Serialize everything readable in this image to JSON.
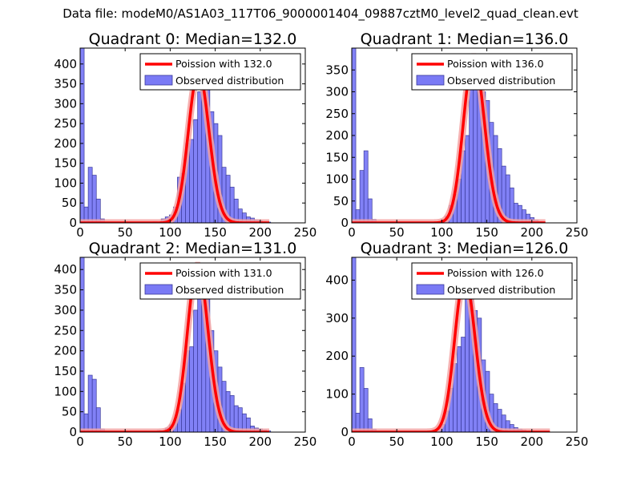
{
  "figure_title": "Data file: modeM0/AS1A03_117T06_9000001404_09887cztM0_level2_quad_clean.evt",
  "colors": {
    "poisson": "#ff0000",
    "poisson_light": "#f5a3a3",
    "bar_fill": "#7a7af5",
    "bar_edge": "#3a3a9a"
  },
  "chart_data": [
    {
      "type": "bar",
      "title": "Quadrant 0: Median=132.0",
      "legend": {
        "placement": "top-right",
        "line_label": "Poission with 132.0",
        "bar_label": "Observed distribution"
      },
      "xlim": [
        0,
        250
      ],
      "ylim": [
        0,
        440
      ],
      "xticks": [
        0,
        50,
        100,
        150,
        200,
        250
      ],
      "yticks": [
        0,
        50,
        100,
        150,
        200,
        250,
        300,
        350,
        400
      ],
      "bin_width": 4.5,
      "bins": [
        [
          0,
          440
        ],
        [
          4.5,
          40
        ],
        [
          9,
          140
        ],
        [
          13.5,
          120
        ],
        [
          18,
          60
        ],
        [
          22.5,
          10
        ],
        [
          81,
          3
        ],
        [
          90,
          10
        ],
        [
          94.5,
          15
        ],
        [
          99,
          20
        ],
        [
          103.5,
          40
        ],
        [
          108,
          115
        ],
        [
          112.5,
          125
        ],
        [
          117,
          200
        ],
        [
          121.5,
          210
        ],
        [
          126,
          260
        ],
        [
          130.5,
          330
        ],
        [
          135,
          380
        ],
        [
          139.5,
          360
        ],
        [
          144,
          280
        ],
        [
          148.5,
          250
        ],
        [
          153,
          220
        ],
        [
          157.5,
          140
        ],
        [
          162,
          120
        ],
        [
          166.5,
          90
        ],
        [
          171,
          60
        ],
        [
          175.5,
          35
        ],
        [
          180,
          25
        ],
        [
          184.5,
          15
        ],
        [
          189,
          12
        ],
        [
          193.5,
          8
        ],
        [
          198,
          5
        ],
        [
          202.5,
          3
        ],
        [
          207,
          2
        ]
      ],
      "poisson_mean": 132.0,
      "poisson_peak": 380,
      "poisson_range": [
        0,
        210
      ]
    },
    {
      "type": "bar",
      "title": "Quadrant 1: Median=136.0",
      "legend": {
        "placement": "top-right",
        "line_label": "Poission with 136.0",
        "bar_label": "Observed distribution"
      },
      "xlim": [
        0,
        250
      ],
      "ylim": [
        0,
        400
      ],
      "xticks": [
        0,
        50,
        100,
        150,
        200,
        250
      ],
      "yticks": [
        0,
        50,
        100,
        150,
        200,
        250,
        300,
        350
      ],
      "bin_width": 4.5,
      "bins": [
        [
          0,
          400
        ],
        [
          4.5,
          30
        ],
        [
          9,
          120
        ],
        [
          13.5,
          165
        ],
        [
          18,
          55
        ],
        [
          22.5,
          8
        ],
        [
          99,
          7
        ],
        [
          103.5,
          15
        ],
        [
          108,
          40
        ],
        [
          112.5,
          65
        ],
        [
          117,
          100
        ],
        [
          121.5,
          165
        ],
        [
          126,
          200
        ],
        [
          130.5,
          320
        ],
        [
          135,
          360
        ],
        [
          139.5,
          340
        ],
        [
          144,
          300
        ],
        [
          148.5,
          280
        ],
        [
          153,
          230
        ],
        [
          157.5,
          200
        ],
        [
          162,
          170
        ],
        [
          166.5,
          130
        ],
        [
          171,
          110
        ],
        [
          175.5,
          80
        ],
        [
          180,
          45
        ],
        [
          184.5,
          40
        ],
        [
          189,
          30
        ],
        [
          193.5,
          20
        ],
        [
          198,
          12
        ],
        [
          202.5,
          6
        ],
        [
          207,
          3
        ]
      ],
      "poisson_mean": 136.0,
      "poisson_peak": 380,
      "poisson_range": [
        0,
        215
      ]
    },
    {
      "type": "bar",
      "title": "Quadrant 2: Median=131.0",
      "legend": {
        "placement": "top-right",
        "line_label": "Poission with 131.0",
        "bar_label": "Observed distribution"
      },
      "xlim": [
        0,
        250
      ],
      "ylim": [
        0,
        430
      ],
      "xticks": [
        0,
        50,
        100,
        150,
        200,
        250
      ],
      "yticks": [
        0,
        50,
        100,
        150,
        200,
        250,
        300,
        350,
        400
      ],
      "bin_width": 4.5,
      "bins": [
        [
          0,
          430
        ],
        [
          4.5,
          45
        ],
        [
          9,
          140
        ],
        [
          13.5,
          130
        ],
        [
          18,
          60
        ],
        [
          22.5,
          8
        ],
        [
          85.5,
          4
        ],
        [
          94.5,
          10
        ],
        [
          99,
          18
        ],
        [
          103.5,
          30
        ],
        [
          108,
          55
        ],
        [
          112.5,
          120
        ],
        [
          117,
          200
        ],
        [
          121.5,
          210
        ],
        [
          126,
          300
        ],
        [
          130.5,
          400
        ],
        [
          135,
          390
        ],
        [
          139.5,
          360
        ],
        [
          144,
          250
        ],
        [
          148.5,
          200
        ],
        [
          153,
          160
        ],
        [
          157.5,
          125
        ],
        [
          162,
          100
        ],
        [
          166.5,
          90
        ],
        [
          171,
          65
        ],
        [
          175.5,
          60
        ],
        [
          180,
          45
        ],
        [
          184.5,
          35
        ],
        [
          189,
          15
        ],
        [
          193.5,
          10
        ],
        [
          198,
          8
        ],
        [
          202.5,
          5
        ],
        [
          207,
          3
        ]
      ],
      "poisson_mean": 131.0,
      "poisson_peak": 410,
      "poisson_range": [
        0,
        210
      ]
    },
    {
      "type": "bar",
      "title": "Quadrant 3: Median=126.0",
      "legend": {
        "placement": "top-right",
        "line_label": "Poission with 126.0",
        "bar_label": "Observed distribution"
      },
      "xlim": [
        0,
        250
      ],
      "ylim": [
        0,
        460
      ],
      "xticks": [
        0,
        50,
        100,
        150,
        200,
        250
      ],
      "yticks": [
        0,
        100,
        200,
        300,
        400
      ],
      "bin_width": 4.5,
      "bins": [
        [
          0,
          460
        ],
        [
          4.5,
          50
        ],
        [
          9,
          170
        ],
        [
          13.5,
          115
        ],
        [
          18,
          35
        ],
        [
          22.5,
          8
        ],
        [
          85.5,
          3
        ],
        [
          90,
          5
        ],
        [
          94.5,
          10
        ],
        [
          99,
          20
        ],
        [
          103.5,
          55
        ],
        [
          108,
          115
        ],
        [
          112.5,
          180
        ],
        [
          117,
          225
        ],
        [
          121.5,
          250
        ],
        [
          126,
          420
        ],
        [
          130.5,
          380
        ],
        [
          135,
          320
        ],
        [
          139.5,
          300
        ],
        [
          144,
          190
        ],
        [
          148.5,
          160
        ],
        [
          153,
          100
        ],
        [
          157.5,
          75
        ],
        [
          162,
          60
        ],
        [
          166.5,
          45
        ],
        [
          171,
          30
        ],
        [
          175.5,
          20
        ],
        [
          180,
          12
        ],
        [
          184.5,
          8
        ],
        [
          189,
          5
        ],
        [
          193.5,
          3
        ]
      ],
      "poisson_mean": 126.0,
      "poisson_peak": 410,
      "poisson_range": [
        0,
        220
      ]
    }
  ]
}
